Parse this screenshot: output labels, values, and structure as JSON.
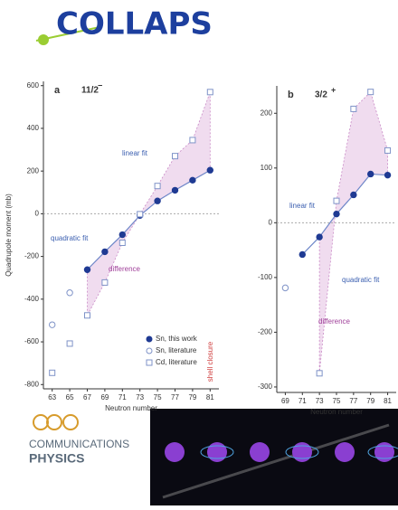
{
  "header": {
    "logo": "COLLAPS"
  },
  "chart_data": [
    {
      "type": "scatter",
      "panel": "a",
      "spin": "11/2",
      "parity": "−",
      "ylabel": "Quadrupole moment (mb)",
      "xlabel": "Neutron number",
      "x": [
        63,
        65,
        67,
        69,
        71,
        73,
        75,
        77,
        79,
        81
      ],
      "xlim": [
        62,
        82
      ],
      "xticks": [
        63,
        65,
        67,
        69,
        71,
        73,
        75,
        77,
        79,
        81
      ],
      "ylim": [
        -820,
        620
      ],
      "yticks": [
        -800,
        -600,
        -400,
        -200,
        0,
        200,
        400,
        600
      ],
      "legend": true,
      "series": [
        {
          "name": "Sn, this work",
          "color": "#1f3a93",
          "marker": "circle",
          "filled": true,
          "values": [
            null,
            null,
            -262,
            -178,
            -98,
            -8,
            60,
            110,
            157,
            204
          ]
        },
        {
          "name": "Sn, literature",
          "color": "#7f93c8",
          "marker": "circle",
          "filled": false,
          "values": [
            -520,
            -370,
            null,
            null,
            null,
            null,
            null,
            null,
            null,
            null
          ]
        },
        {
          "name": "Cd, literature",
          "color": "#7f93c8",
          "marker": "square",
          "filled": false,
          "values": [
            -745,
            -608,
            -476,
            -322,
            -136,
            -2,
            130,
            270,
            345,
            570
          ]
        }
      ],
      "annotations": [
        "linear fit",
        "quadratic fit",
        "difference",
        "shell closure"
      ]
    },
    {
      "type": "scatter",
      "panel": "b",
      "spin": "3/2",
      "parity": "+",
      "xlabel": "Neutron number",
      "x": [
        69,
        71,
        73,
        75,
        77,
        79,
        81
      ],
      "xlim": [
        68,
        82
      ],
      "xticks": [
        69,
        71,
        73,
        75,
        77,
        79,
        81
      ],
      "ylim": [
        -310,
        250
      ],
      "yticks": [
        -300,
        -200,
        -100,
        0,
        100,
        200
      ],
      "legend": false,
      "series": [
        {
          "color": "#1f3a93",
          "marker": "circle",
          "filled": true,
          "values": [
            null,
            -58,
            -26,
            16,
            51,
            89,
            87
          ]
        },
        {
          "color": "#7f93c8",
          "marker": "circle",
          "filled": false,
          "values": [
            -119,
            null,
            null,
            null,
            null,
            null,
            null
          ]
        },
        {
          "color": "#7f93c8",
          "marker": "square",
          "filled": false,
          "values": [
            null,
            null,
            -275,
            40,
            208,
            239,
            132
          ]
        }
      ],
      "annotations": [
        "linear fit",
        "quadratic fit",
        "difference"
      ]
    }
  ],
  "footer": {
    "journal_line1": "COMMUNICATIONS",
    "journal_line2": "PHYSICS"
  }
}
